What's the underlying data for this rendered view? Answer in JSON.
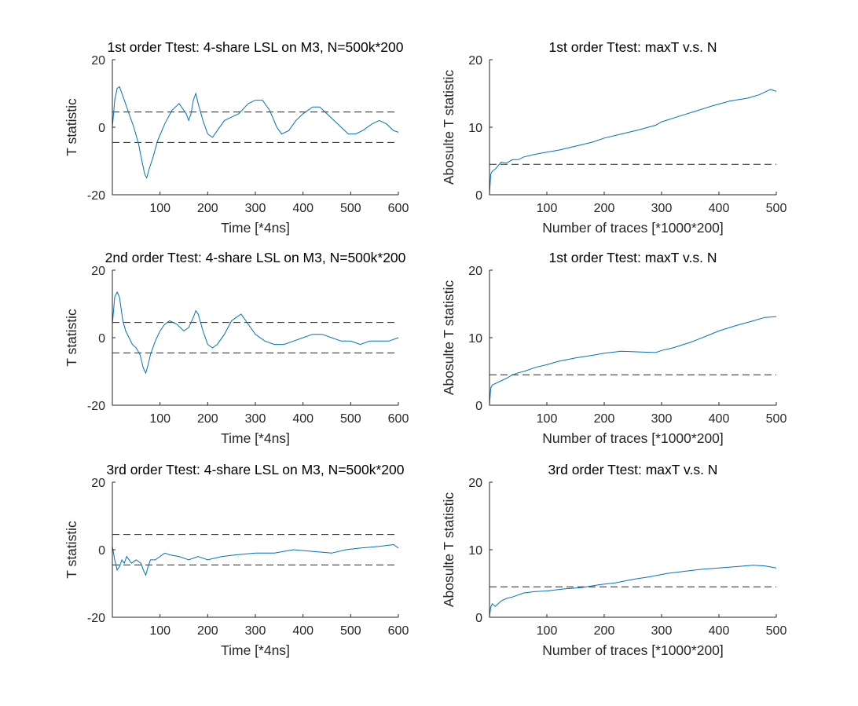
{
  "chart_data": [
    {
      "id": "p1",
      "type": "line",
      "title": "1st order Ttest: 4-share LSL on M3, N=500k*200",
      "xlabel": "Time [*4ns]",
      "ylabel": "T statistic",
      "xlim": [
        0,
        600
      ],
      "ylim": [
        -20,
        20
      ],
      "xticks": [
        100,
        200,
        300,
        400,
        500,
        600
      ],
      "yticks": [
        -20,
        0,
        20
      ],
      "thresholds": [
        4.5,
        -4.5
      ],
      "series": [
        {
          "color": "#0072bd",
          "x": [
            0,
            5,
            10,
            15,
            25,
            35,
            45,
            55,
            62,
            68,
            72,
            78,
            85,
            95,
            110,
            125,
            140,
            150,
            155,
            160,
            165,
            170,
            175,
            180,
            190,
            200,
            210,
            220,
            235,
            250,
            265,
            285,
            300,
            315,
            330,
            345,
            355,
            370,
            385,
            400,
            420,
            435,
            450,
            465,
            480,
            495,
            510,
            525,
            545,
            560,
            575,
            590,
            600
          ],
          "y": [
            0,
            8,
            11.5,
            12,
            8,
            4,
            0,
            -5,
            -10,
            -14,
            -15,
            -12,
            -9,
            -4,
            1,
            5,
            7,
            5,
            4,
            2,
            4,
            8,
            10,
            7,
            2,
            -2,
            -3,
            -1,
            2,
            3,
            4,
            7,
            8,
            8,
            5,
            0,
            -2,
            -1,
            2,
            4,
            6,
            6,
            4,
            2,
            0,
            -2,
            -2,
            -1,
            1,
            2,
            1,
            -1,
            -1.5
          ]
        }
      ]
    },
    {
      "id": "p2",
      "type": "line",
      "title": "1st order Ttest: maxT v.s. N",
      "xlabel": "Number of traces [*1000*200]",
      "ylabel": "Abosulte T statistic",
      "xlim": [
        0,
        500
      ],
      "ylim": [
        0,
        20
      ],
      "xticks": [
        100,
        200,
        300,
        400,
        500
      ],
      "yticks": [
        0,
        10,
        20
      ],
      "thresholds": [
        4.5
      ],
      "series": [
        {
          "color": "#0072bd",
          "x": [
            0,
            2,
            5,
            10,
            15,
            20,
            30,
            40,
            50,
            60,
            80,
            100,
            120,
            150,
            180,
            200,
            230,
            260,
            290,
            300,
            330,
            360,
            390,
            420,
            450,
            470,
            490,
            500
          ],
          "y": [
            0,
            3,
            3.5,
            3.8,
            4.3,
            4.8,
            4.7,
            5.2,
            5.2,
            5.6,
            6.0,
            6.3,
            6.6,
            7.2,
            7.8,
            8.4,
            9.0,
            9.6,
            10.3,
            10.8,
            11.6,
            12.4,
            13.2,
            13.9,
            14.3,
            14.8,
            15.6,
            15.3
          ]
        }
      ]
    },
    {
      "id": "p3",
      "type": "line",
      "title": "2nd order Ttest: 4-share LSL on M3, N=500k*200",
      "xlabel": "Time [*4ns]",
      "ylabel": "T statistic",
      "xlim": [
        0,
        600
      ],
      "ylim": [
        -20,
        20
      ],
      "xticks": [
        100,
        200,
        300,
        400,
        500,
        600
      ],
      "yticks": [
        -20,
        0,
        20
      ],
      "thresholds": [
        4.5,
        -4.5
      ],
      "series": [
        {
          "color": "#0072bd",
          "x": [
            0,
            5,
            10,
            15,
            22,
            28,
            35,
            42,
            50,
            58,
            65,
            70,
            75,
            80,
            90,
            100,
            110,
            120,
            135,
            150,
            160,
            170,
            175,
            180,
            190,
            200,
            210,
            220,
            235,
            250,
            260,
            270,
            280,
            290,
            300,
            320,
            340,
            360,
            380,
            400,
            420,
            440,
            460,
            480,
            500,
            520,
            540,
            560,
            580,
            600
          ],
          "y": [
            4,
            12,
            13.5,
            12,
            5,
            2,
            0,
            -2,
            -3,
            -5,
            -9,
            -10.5,
            -8,
            -5,
            -1,
            2,
            4,
            5,
            4,
            2,
            3,
            6,
            8,
            7,
            2,
            -2,
            -3,
            -2,
            1,
            5,
            6,
            7,
            5,
            3,
            1,
            -1,
            -2,
            -2,
            -1,
            0,
            1,
            1,
            0,
            -1,
            -1,
            -2,
            -1,
            -1,
            -1,
            0
          ]
        }
      ]
    },
    {
      "id": "p4",
      "type": "line",
      "title": "1st order Ttest: maxT v.s. N",
      "xlabel": "Number of traces [*1000*200]",
      "ylabel": "Abosulte T statistic",
      "xlim": [
        0,
        500
      ],
      "ylim": [
        0,
        20
      ],
      "xticks": [
        100,
        200,
        300,
        400,
        500
      ],
      "yticks": [
        0,
        10,
        20
      ],
      "thresholds": [
        4.5
      ],
      "series": [
        {
          "color": "#0072bd",
          "x": [
            0,
            2,
            5,
            10,
            20,
            30,
            40,
            50,
            60,
            80,
            100,
            120,
            150,
            180,
            200,
            230,
            260,
            290,
            300,
            320,
            350,
            380,
            400,
            430,
            460,
            480,
            500
          ],
          "y": [
            0,
            2.5,
            3.0,
            3.2,
            3.6,
            4.0,
            4.5,
            4.8,
            5.0,
            5.6,
            6.0,
            6.5,
            7.0,
            7.4,
            7.7,
            8.0,
            7.9,
            7.8,
            8.1,
            8.5,
            9.3,
            10.3,
            11.0,
            11.8,
            12.5,
            13.0,
            13.1
          ]
        }
      ]
    },
    {
      "id": "p5",
      "type": "line",
      "title": "3rd order Ttest: 4-share LSL on M3, N=500k*200",
      "xlabel": "Time [*4ns]",
      "ylabel": "T statistic",
      "xlim": [
        0,
        600
      ],
      "ylim": [
        -20,
        20
      ],
      "xticks": [
        100,
        200,
        300,
        400,
        500,
        600
      ],
      "yticks": [
        -20,
        0,
        20
      ],
      "thresholds": [
        4.5,
        -4.5
      ],
      "series": [
        {
          "color": "#0072bd",
          "x": [
            0,
            5,
            10,
            15,
            20,
            25,
            30,
            40,
            50,
            60,
            65,
            70,
            75,
            80,
            90,
            100,
            110,
            120,
            140,
            160,
            180,
            200,
            230,
            260,
            300,
            340,
            380,
            420,
            460,
            490,
            520,
            560,
            590,
            600
          ],
          "y": [
            1,
            -3,
            -6,
            -5,
            -3,
            -4,
            -2,
            -4,
            -3,
            -4,
            -6,
            -7.5,
            -5,
            -3,
            -3,
            -2,
            -1,
            -1.5,
            -2,
            -3,
            -2,
            -3,
            -2,
            -1.5,
            -1,
            -1,
            0,
            -0.5,
            -1,
            0,
            0.5,
            1,
            1.5,
            0.5
          ]
        }
      ]
    },
    {
      "id": "p6",
      "type": "line",
      "title": "3rd order Ttest: maxT v.s. N",
      "xlabel": "Number of traces [*1000*200]",
      "ylabel": "Abosulte T statistic",
      "xlim": [
        0,
        500
      ],
      "ylim": [
        0,
        20
      ],
      "xticks": [
        100,
        200,
        300,
        400,
        500
      ],
      "yticks": [
        0,
        10,
        20
      ],
      "thresholds": [
        4.5
      ],
      "series": [
        {
          "color": "#0072bd",
          "x": [
            0,
            2,
            5,
            10,
            20,
            30,
            40,
            60,
            80,
            100,
            130,
            160,
            190,
            220,
            250,
            280,
            310,
            340,
            370,
            400,
            430,
            460,
            480,
            500
          ],
          "y": [
            0,
            1.5,
            2.0,
            1.6,
            2.4,
            2.8,
            3.0,
            3.6,
            3.8,
            3.9,
            4.2,
            4.4,
            4.8,
            5.1,
            5.6,
            6.0,
            6.5,
            6.8,
            7.1,
            7.3,
            7.5,
            7.7,
            7.6,
            7.3
          ]
        }
      ]
    }
  ]
}
